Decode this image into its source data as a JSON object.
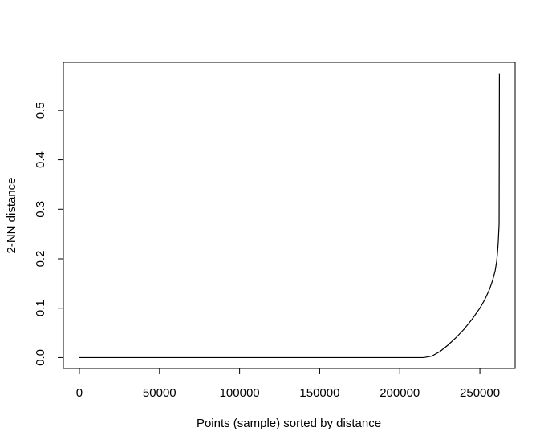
{
  "chart_data": {
    "type": "line",
    "title": "",
    "xlabel": "Points (sample) sorted by distance",
    "ylabel": "2-NN distance",
    "xlim": [
      -10000,
      272000
    ],
    "ylim": [
      -0.022,
      0.597
    ],
    "xticks": [
      0,
      50000,
      100000,
      150000,
      200000,
      250000
    ],
    "xtick_labels": [
      "0",
      "50000",
      "100000",
      "150000",
      "200000",
      "250000"
    ],
    "yticks": [
      0.0,
      0.1,
      0.2,
      0.3,
      0.4,
      0.5
    ],
    "ytick_labels": [
      "0.0",
      "0.1",
      "0.2",
      "0.3",
      "0.4",
      "0.5"
    ],
    "grid": false,
    "line_color": "#000000",
    "series": [
      {
        "x": [
          0,
          50000,
          100000,
          150000,
          200000,
          215000,
          220000,
          225000,
          230000,
          235000,
          240000,
          245000,
          250000,
          253000,
          256000,
          258000,
          259500,
          260500,
          261000,
          261500,
          262000,
          262200
        ],
        "y": [
          0.0,
          0.0,
          0.0,
          0.0,
          0.0,
          0.0,
          0.003,
          0.012,
          0.025,
          0.04,
          0.057,
          0.077,
          0.1,
          0.117,
          0.138,
          0.157,
          0.175,
          0.195,
          0.212,
          0.235,
          0.27,
          0.575
        ]
      }
    ]
  }
}
